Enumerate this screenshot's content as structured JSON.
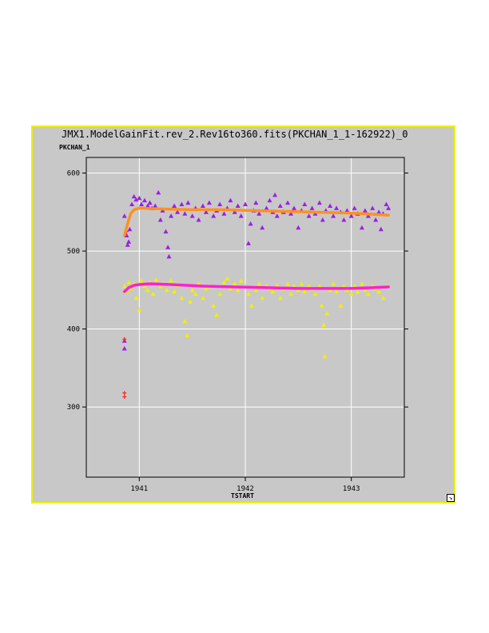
{
  "window": {
    "title": "JMX1.ModelGainFit.rev_2.Rev16to360.fits(PKCHAN_1_1-162922)_0"
  },
  "chart_data": {
    "type": "scatter",
    "title": "JMX1.ModelGainFit.rev_2.Rev16to360.fits(PKCHAN_1_1-162922)_0",
    "xlabel": "TSTART",
    "ylabel": "PKCHAN_1",
    "xlim": [
      1940.5,
      1943.5
    ],
    "ylim": [
      210,
      620
    ],
    "x_ticks": [
      1941,
      1942,
      1943
    ],
    "y_ticks": [
      300,
      400,
      500,
      600
    ],
    "grid": true,
    "series": [
      {
        "marker": "triangle",
        "color": "#9b1ee6",
        "points": [
          [
            1940.86,
            545
          ],
          [
            1940.88,
            520
          ],
          [
            1940.89,
            508
          ],
          [
            1940.9,
            512
          ],
          [
            1940.91,
            528
          ],
          [
            1940.93,
            560
          ],
          [
            1940.95,
            570
          ],
          [
            1940.97,
            566
          ],
          [
            1941.0,
            568
          ],
          [
            1941.02,
            560
          ],
          [
            1941.05,
            565
          ],
          [
            1941.08,
            558
          ],
          [
            1941.1,
            562
          ],
          [
            1941.12,
            555
          ],
          [
            1941.15,
            558
          ],
          [
            1941.18,
            575
          ],
          [
            1941.2,
            540
          ],
          [
            1941.22,
            552
          ],
          [
            1941.25,
            525
          ],
          [
            1941.27,
            505
          ],
          [
            1941.28,
            493
          ],
          [
            1941.3,
            545
          ],
          [
            1941.33,
            558
          ],
          [
            1941.36,
            550
          ],
          [
            1941.4,
            560
          ],
          [
            1941.43,
            548
          ],
          [
            1941.46,
            562
          ],
          [
            1941.5,
            545
          ],
          [
            1941.53,
            555
          ],
          [
            1941.56,
            540
          ],
          [
            1941.6,
            558
          ],
          [
            1941.63,
            550
          ],
          [
            1941.66,
            562
          ],
          [
            1941.7,
            545
          ],
          [
            1941.73,
            552
          ],
          [
            1941.76,
            560
          ],
          [
            1941.8,
            548
          ],
          [
            1941.83,
            555
          ],
          [
            1941.86,
            565
          ],
          [
            1941.9,
            550
          ],
          [
            1941.93,
            558
          ],
          [
            1941.96,
            545
          ],
          [
            1942.0,
            560
          ],
          [
            1942.03,
            510
          ],
          [
            1942.05,
            535
          ],
          [
            1942.08,
            552
          ],
          [
            1942.1,
            562
          ],
          [
            1942.13,
            548
          ],
          [
            1942.16,
            530
          ],
          [
            1942.2,
            555
          ],
          [
            1942.23,
            565
          ],
          [
            1942.26,
            550
          ],
          [
            1942.28,
            572
          ],
          [
            1942.3,
            545
          ],
          [
            1942.33,
            558
          ],
          [
            1942.36,
            550
          ],
          [
            1942.4,
            562
          ],
          [
            1942.43,
            548
          ],
          [
            1942.46,
            555
          ],
          [
            1942.5,
            530
          ],
          [
            1942.53,
            552
          ],
          [
            1942.56,
            560
          ],
          [
            1942.6,
            545
          ],
          [
            1942.63,
            555
          ],
          [
            1942.66,
            548
          ],
          [
            1942.7,
            562
          ],
          [
            1942.73,
            540
          ],
          [
            1942.76,
            552
          ],
          [
            1942.8,
            558
          ],
          [
            1942.83,
            545
          ],
          [
            1942.86,
            555
          ],
          [
            1942.9,
            550
          ],
          [
            1942.93,
            540
          ],
          [
            1942.96,
            552
          ],
          [
            1943.0,
            545
          ],
          [
            1943.03,
            555
          ],
          [
            1943.06,
            548
          ],
          [
            1943.1,
            530
          ],
          [
            1943.13,
            552
          ],
          [
            1943.16,
            545
          ],
          [
            1943.2,
            555
          ],
          [
            1943.23,
            540
          ],
          [
            1943.26,
            550
          ],
          [
            1943.28,
            528
          ],
          [
            1943.3,
            548
          ],
          [
            1943.33,
            560
          ],
          [
            1943.35,
            555
          ]
        ]
      },
      {
        "marker": "triangle",
        "color": "#f0f000",
        "points": [
          [
            1940.86,
            455
          ],
          [
            1940.88,
            448
          ],
          [
            1940.9,
            460
          ],
          [
            1940.92,
            452
          ],
          [
            1940.95,
            458
          ],
          [
            1940.97,
            440
          ],
          [
            1941.0,
            425
          ],
          [
            1941.02,
            462
          ],
          [
            1941.05,
            455
          ],
          [
            1941.08,
            450
          ],
          [
            1941.1,
            460
          ],
          [
            1941.13,
            445
          ],
          [
            1941.16,
            463
          ],
          [
            1941.2,
            455
          ],
          [
            1941.23,
            458
          ],
          [
            1941.26,
            450
          ],
          [
            1941.3,
            462
          ],
          [
            1941.33,
            448
          ],
          [
            1941.36,
            456
          ],
          [
            1941.4,
            440
          ],
          [
            1941.43,
            410
          ],
          [
            1941.45,
            392
          ],
          [
            1941.48,
            435
          ],
          [
            1941.5,
            450
          ],
          [
            1941.53,
            445
          ],
          [
            1941.56,
            458
          ],
          [
            1941.6,
            440
          ],
          [
            1941.63,
            452
          ],
          [
            1941.66,
            455
          ],
          [
            1941.7,
            430
          ],
          [
            1941.73,
            418
          ],
          [
            1941.76,
            445
          ],
          [
            1941.8,
            460
          ],
          [
            1941.83,
            465
          ],
          [
            1941.86,
            452
          ],
          [
            1941.9,
            458
          ],
          [
            1941.93,
            450
          ],
          [
            1941.96,
            462
          ],
          [
            1942.0,
            455
          ],
          [
            1942.03,
            445
          ],
          [
            1942.06,
            430
          ],
          [
            1942.1,
            450
          ],
          [
            1942.13,
            458
          ],
          [
            1942.16,
            440
          ],
          [
            1942.2,
            455
          ],
          [
            1942.23,
            452
          ],
          [
            1942.26,
            448
          ],
          [
            1942.3,
            456
          ],
          [
            1942.33,
            440
          ],
          [
            1942.36,
            452
          ],
          [
            1942.4,
            458
          ],
          [
            1942.43,
            445
          ],
          [
            1942.46,
            455
          ],
          [
            1942.5,
            450
          ],
          [
            1942.53,
            458
          ],
          [
            1942.56,
            448
          ],
          [
            1942.6,
            455
          ],
          [
            1942.63,
            452
          ],
          [
            1942.66,
            445
          ],
          [
            1942.7,
            455
          ],
          [
            1942.72,
            430
          ],
          [
            1942.74,
            405
          ],
          [
            1942.75,
            365
          ],
          [
            1942.77,
            420
          ],
          [
            1942.8,
            450
          ],
          [
            1942.83,
            458
          ],
          [
            1942.86,
            448
          ],
          [
            1942.9,
            430
          ],
          [
            1942.93,
            455
          ],
          [
            1942.96,
            450
          ],
          [
            1943.0,
            445
          ],
          [
            1943.03,
            455
          ],
          [
            1943.06,
            448
          ],
          [
            1943.1,
            458
          ],
          [
            1943.13,
            450
          ],
          [
            1943.16,
            445
          ],
          [
            1943.2,
            455
          ],
          [
            1943.23,
            452
          ],
          [
            1943.26,
            448
          ],
          [
            1943.3,
            440
          ],
          [
            1943.33,
            455
          ]
        ]
      },
      {
        "marker": "triangle",
        "color": "#9b1ee6",
        "points": [
          [
            1940.86,
            385
          ],
          [
            1940.86,
            375
          ]
        ]
      },
      {
        "marker": "plus",
        "color": "#ff2020",
        "points": [
          [
            1940.86,
            387
          ],
          [
            1940.86,
            318
          ],
          [
            1940.86,
            313
          ],
          [
            1940.88,
            525
          ]
        ]
      },
      {
        "marker": "curve",
        "color": "#ff9020",
        "points": [
          [
            1940.86,
            520
          ],
          [
            1940.88,
            530
          ],
          [
            1940.9,
            540
          ],
          [
            1940.92,
            548
          ],
          [
            1940.95,
            553
          ],
          [
            1941.0,
            555
          ],
          [
            1941.2,
            554
          ],
          [
            1941.5,
            553
          ],
          [
            1941.8,
            553
          ],
          [
            1942.0,
            552
          ],
          [
            1942.3,
            551
          ],
          [
            1942.6,
            550
          ],
          [
            1942.9,
            549
          ],
          [
            1943.1,
            548
          ],
          [
            1943.35,
            546
          ]
        ]
      },
      {
        "marker": "curve",
        "color": "#ff20d0",
        "points": [
          [
            1940.86,
            448
          ],
          [
            1940.9,
            453
          ],
          [
            1940.95,
            456
          ],
          [
            1941.0,
            457
          ],
          [
            1941.1,
            458
          ],
          [
            1941.3,
            457
          ],
          [
            1941.6,
            455
          ],
          [
            1941.9,
            454
          ],
          [
            1942.2,
            453
          ],
          [
            1942.5,
            452
          ],
          [
            1942.8,
            452
          ],
          [
            1943.0,
            452
          ],
          [
            1943.2,
            453
          ],
          [
            1943.35,
            454
          ]
        ]
      }
    ]
  }
}
